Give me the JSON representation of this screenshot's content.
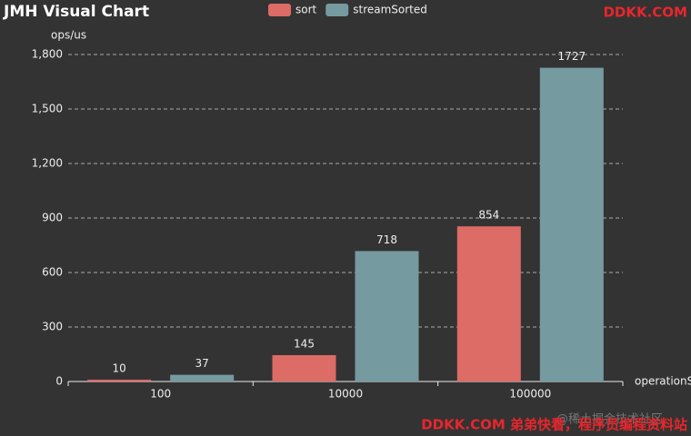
{
  "chart_data": {
    "type": "bar",
    "title": "JMH Visual Chart",
    "y_axis_label": "ops/us",
    "x_axis_label": "operationS",
    "categories": [
      "100",
      "10000",
      "100000"
    ],
    "series": [
      {
        "name": "sort",
        "color": "#dd6b66",
        "values": [
          10,
          145,
          854
        ]
      },
      {
        "name": "streamSorted",
        "color": "#759aa0",
        "values": [
          37,
          718,
          1727
        ]
      }
    ],
    "ylim": [
      0,
      1800
    ],
    "yticks": [
      0,
      300,
      600,
      900,
      {
        "value": 1200,
        "label": "1,200"
      },
      {
        "value": 1500,
        "label": "1,500"
      },
      {
        "value": 1800,
        "label": "1,800"
      }
    ],
    "grid": true
  },
  "watermarks": {
    "top_right": "DDKK.COM",
    "bottom": "DDKK.COM 弟弟快看，程序员编程资料站",
    "community": "@稀土掘金技术社区"
  }
}
